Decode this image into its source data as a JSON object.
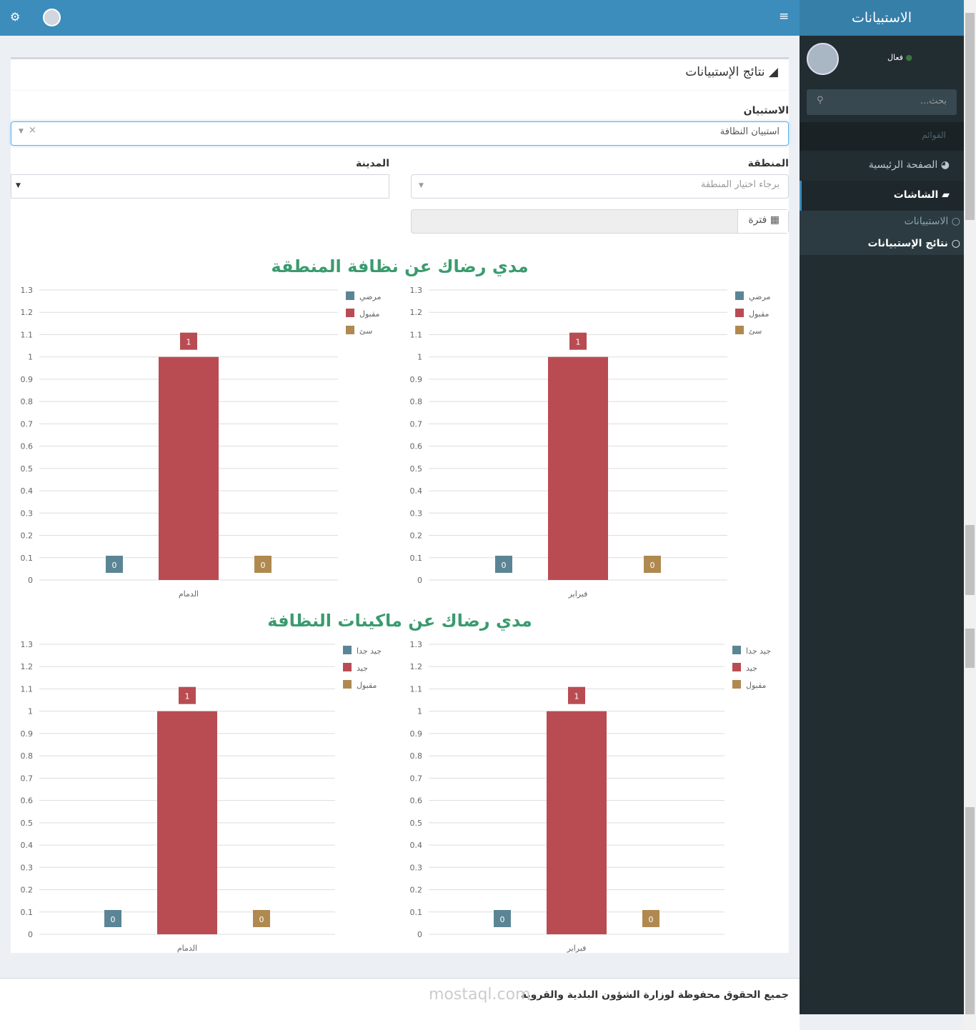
{
  "brand": "الاستبيانات",
  "sidebar": {
    "status": "فعال",
    "status_color": "#3c763d",
    "search_placeholder": "بحث...",
    "header": "القوائم",
    "items": [
      {
        "label": "الصفحة الرئيسية",
        "icon": "dashboard-icon"
      },
      {
        "label": "الشاشات",
        "icon": "book-icon"
      }
    ],
    "subitems": [
      {
        "label": "الاستبيانات"
      },
      {
        "label": "نتائج الإستبيانات"
      }
    ]
  },
  "page": {
    "title": "نتائج الإستبيانات",
    "survey_label": "الاستبيان",
    "survey_value": "استبيان النظافة",
    "region_label": "المنطقة",
    "region_placeholder": "برجاء اختيار المنطقة",
    "city_label": "المدينة",
    "period_label": "فترة"
  },
  "footer": {
    "text": "جميع الحقوق محفوظة لوزارة الشؤون البلدية والقروية",
    "watermark": "مستقل mostaql.com"
  },
  "colors": {
    "series1": "#5b8595",
    "series2": "#b94c52",
    "series3": "#b08950",
    "title": "#3a9b6e"
  },
  "chart_titles": [
    "مدي رضاك عن نظافة المنطقة",
    "مدي رضاك عن ماكينات النظافة"
  ],
  "chart_data": [
    {
      "type": "bar",
      "title": "مدي رضاك عن نظافة المنطقة",
      "categories": [
        "الدمام"
      ],
      "ylim": [
        0,
        1.3
      ],
      "yticks": [
        "0",
        "0.1",
        "0.2",
        "0.3",
        "0.4",
        "0.5",
        "0.6",
        "0.7",
        "0.8",
        "0.9",
        "1",
        "1.1",
        "1.2",
        "1.3"
      ],
      "grid": true,
      "legend": "top-right",
      "series": [
        {
          "name": "مرضي",
          "values": [
            0
          ]
        },
        {
          "name": "مقبول",
          "values": [
            1
          ]
        },
        {
          "name": "سئ",
          "values": [
            0
          ]
        }
      ]
    },
    {
      "type": "bar",
      "title": "مدي رضاك عن نظافة المنطقة",
      "categories": [
        "فبراير"
      ],
      "ylim": [
        0,
        1.3
      ],
      "yticks": [
        "0",
        "0.1",
        "0.2",
        "0.3",
        "0.4",
        "0.5",
        "0.6",
        "0.7",
        "0.8",
        "0.9",
        "1",
        "1.1",
        "1.2",
        "1.3"
      ],
      "grid": true,
      "legend": "top-right",
      "series": [
        {
          "name": "مرضي",
          "values": [
            0
          ]
        },
        {
          "name": "مقبول",
          "values": [
            1
          ]
        },
        {
          "name": "سئ",
          "values": [
            0
          ]
        }
      ]
    },
    {
      "type": "bar",
      "title": "مدي رضاك عن ماكينات النظافة",
      "categories": [
        "الدمام"
      ],
      "ylim": [
        0,
        1.3
      ],
      "yticks": [
        "0",
        "0.1",
        "0.2",
        "0.3",
        "0.4",
        "0.5",
        "0.6",
        "0.7",
        "0.8",
        "0.9",
        "1",
        "1.1",
        "1.2",
        "1.3"
      ],
      "grid": true,
      "legend": "top-right",
      "series": [
        {
          "name": "جيد جدا",
          "values": [
            0
          ]
        },
        {
          "name": "جيد",
          "values": [
            1
          ]
        },
        {
          "name": "مقبول",
          "values": [
            0
          ]
        }
      ]
    },
    {
      "type": "bar",
      "title": "مدي رضاك عن ماكينات النظافة",
      "categories": [
        "فبراير"
      ],
      "ylim": [
        0,
        1.3
      ],
      "yticks": [
        "0",
        "0.1",
        "0.2",
        "0.3",
        "0.4",
        "0.5",
        "0.6",
        "0.7",
        "0.8",
        "0.9",
        "1",
        "1.1",
        "1.2",
        "1.3"
      ],
      "grid": true,
      "legend": "top-right",
      "series": [
        {
          "name": "جيد جدا",
          "values": [
            0
          ]
        },
        {
          "name": "جيد",
          "values": [
            1
          ]
        },
        {
          "name": "مقبول",
          "values": [
            0
          ]
        }
      ]
    }
  ]
}
